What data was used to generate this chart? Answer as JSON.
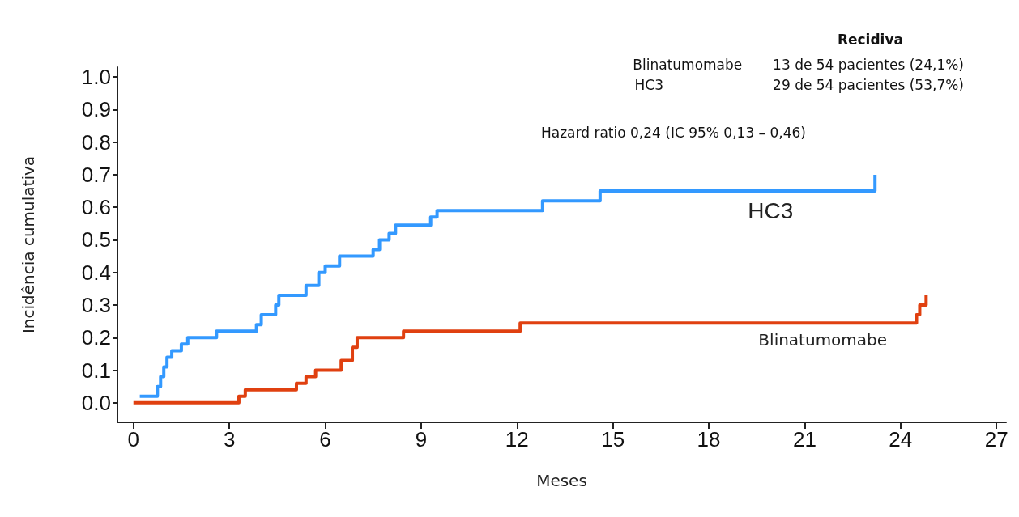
{
  "chart_data": {
    "type": "step",
    "xlabel": "Meses",
    "ylabel": "Incidência cumulativa",
    "xlim": [
      -0.5,
      27.3
    ],
    "ylim": [
      -0.06,
      1.03
    ],
    "xticks": [
      0,
      3,
      6,
      9,
      12,
      15,
      18,
      21,
      24,
      27
    ],
    "yticks": [
      {
        "value": 0,
        "label": "0.0"
      },
      {
        "value": 0.1,
        "label": "0.1"
      },
      {
        "value": 0.2,
        "label": "0.2"
      },
      {
        "value": 0.3,
        "label": "0.3"
      },
      {
        "value": 0.4,
        "label": "0.4"
      },
      {
        "value": 0.5,
        "label": "0.5"
      },
      {
        "value": 0.6,
        "label": "0.6"
      },
      {
        "value": 0.7,
        "label": "0.7"
      },
      {
        "value": 0.8,
        "label": "0.8"
      },
      {
        "value": 0.9,
        "label": "0.9"
      },
      {
        "value": 1,
        "label": "1.0"
      }
    ],
    "grid": false,
    "legend": false,
    "marker": "none",
    "line_style": "solid",
    "series": [
      {
        "name": "HC3",
        "color": "#3399ff",
        "x": [
          0.2,
          0.75,
          0.85,
          0.95,
          1.05,
          1.2,
          1.5,
          1.7,
          2.6,
          3.85,
          4.0,
          4.45,
          4.55,
          5.4,
          5.8,
          6.0,
          6.45,
          7.5,
          7.7,
          8.0,
          8.2,
          9.3,
          9.5,
          12.8,
          14.6,
          23.2,
          23.2
        ],
        "values": [
          0.02,
          0.05,
          0.08,
          0.11,
          0.14,
          0.16,
          0.18,
          0.2,
          0.22,
          0.24,
          0.27,
          0.3,
          0.33,
          0.36,
          0.4,
          0.42,
          0.45,
          0.47,
          0.5,
          0.52,
          0.545,
          0.57,
          0.59,
          0.62,
          0.65,
          0.65,
          0.7
        ]
      },
      {
        "name": "Blinatumomabe",
        "color": "#e04010",
        "x": [
          0,
          3.3,
          3.5,
          5.1,
          5.4,
          5.7,
          6.5,
          6.85,
          7.0,
          8.45,
          12.1,
          24.5,
          24.6,
          24.8,
          24.8
        ],
        "values": [
          0,
          0.02,
          0.04,
          0.06,
          0.08,
          0.1,
          0.13,
          0.17,
          0.2,
          0.22,
          0.245,
          0.27,
          0.3,
          0.3,
          0.33
        ]
      }
    ],
    "annotations": [
      "Recidiva",
      "Blinatumomabe       13 de 54 pacientes (24,1%)",
      "HC3                         29 de 54 pacientes (53,7%)",
      "Hazard ratio 0,24 (IC 95% 0,13 – 0,46)"
    ]
  }
}
